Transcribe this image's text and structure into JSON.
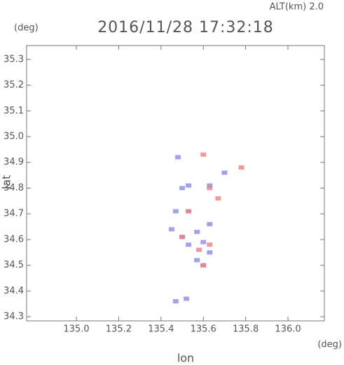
{
  "chart_data": {
    "type": "scatter",
    "title": "2016/11/28 17:32:18",
    "subtitle": "ALT(km) 2.0",
    "y_unit": "(deg)",
    "x_unit": "(deg)",
    "x_label": "lon",
    "y_label": "lat",
    "xlim": [
      134.765,
      136.172
    ],
    "ylim": [
      34.284,
      35.354
    ],
    "xticks": [
      {
        "value": 135,
        "label": "135.0"
      },
      135.2,
      135.4,
      135.6,
      135.8,
      {
        "value": 136,
        "label": "136.0"
      }
    ],
    "yticks": [
      34.3,
      34.4,
      34.5,
      34.6,
      34.7,
      34.8,
      34.9,
      {
        "value": 35,
        "label": "35.0"
      },
      35.1,
      35.2,
      35.3
    ],
    "series": [
      {
        "color": "#8a8af0",
        "x": [
          135.48,
          135.5,
          135.53,
          135.63,
          135.7,
          135.47,
          135.53,
          135.63,
          135.5,
          135.57,
          135.53,
          135.6,
          135.57,
          135.6,
          135.63,
          135.47,
          135.52,
          135.45
        ],
        "y": [
          34.92,
          34.8,
          34.81,
          34.81,
          34.86,
          34.71,
          34.71,
          34.66,
          34.61,
          34.63,
          34.58,
          34.59,
          34.52,
          34.5,
          34.55,
          34.36,
          34.37,
          34.64
        ]
      },
      {
        "color": "#f08080",
        "x": [
          135.6,
          135.78,
          135.63,
          135.67,
          135.53,
          135.58,
          135.63,
          135.6,
          135.5
        ],
        "y": [
          34.93,
          34.88,
          34.8,
          34.76,
          34.71,
          34.56,
          34.58,
          34.5,
          34.61
        ]
      }
    ]
  }
}
